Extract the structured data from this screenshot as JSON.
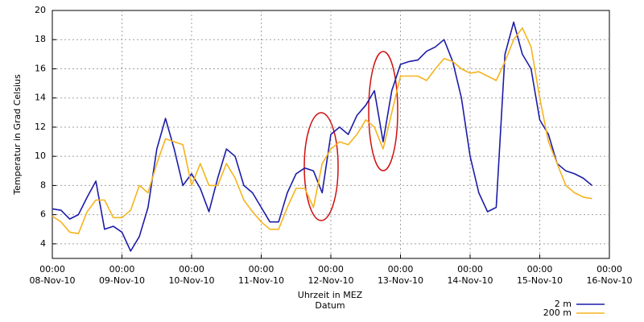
{
  "chart_data": {
    "type": "line",
    "ylabel": "Temperatur in Grad Celsius",
    "xlabel": "Uhrzeit in MEZ",
    "xlabel2": "Datum",
    "ylim": [
      3,
      20
    ],
    "yticks": [
      4,
      6,
      8,
      10,
      12,
      14,
      16,
      18,
      20
    ],
    "xlim": [
      "08-Nov-10 00:00",
      "16-Nov-10 00:00"
    ],
    "xticks": [
      {
        "value": "08-Nov-10 00:00",
        "label": "00:00",
        "date": "08-Nov-10"
      },
      {
        "value": "09-Nov-10 00:00",
        "label": "00:00",
        "date": "09-Nov-10"
      },
      {
        "value": "10-Nov-10 00:00",
        "label": "00:00",
        "date": "10-Nov-10"
      },
      {
        "value": "11-Nov-10 00:00",
        "label": "00:00",
        "date": "11-Nov-10"
      },
      {
        "value": "12-Nov-10 00:00",
        "label": "00:00",
        "date": "12-Nov-10"
      },
      {
        "value": "13-Nov-10 00:00",
        "label": "00:00",
        "date": "13-Nov-10"
      },
      {
        "value": "14-Nov-10 00:00",
        "label": "00:00",
        "date": "14-Nov-10"
      },
      {
        "value": "15-Nov-10 00:00",
        "label": "00:00",
        "date": "15-Nov-10"
      },
      {
        "value": "16-Nov-10 00:00",
        "label": "00:00",
        "date": "16-Nov-10"
      }
    ],
    "grid": true,
    "legend": "bottom-right",
    "x": [
      "08-Nov-10 00:00",
      "08-Nov-10 03:00",
      "08-Nov-10 06:00",
      "08-Nov-10 09:00",
      "08-Nov-10 12:00",
      "08-Nov-10 15:00",
      "08-Nov-10 18:00",
      "08-Nov-10 21:00",
      "09-Nov-10 00:00",
      "09-Nov-10 03:00",
      "09-Nov-10 06:00",
      "09-Nov-10 09:00",
      "09-Nov-10 12:00",
      "09-Nov-10 15:00",
      "09-Nov-10 18:00",
      "09-Nov-10 21:00",
      "10-Nov-10 00:00",
      "10-Nov-10 03:00",
      "10-Nov-10 06:00",
      "10-Nov-10 09:00",
      "10-Nov-10 12:00",
      "10-Nov-10 15:00",
      "10-Nov-10 18:00",
      "10-Nov-10 21:00",
      "11-Nov-10 00:00",
      "11-Nov-10 03:00",
      "11-Nov-10 06:00",
      "11-Nov-10 09:00",
      "11-Nov-10 12:00",
      "11-Nov-10 15:00",
      "11-Nov-10 18:00",
      "11-Nov-10 21:00",
      "12-Nov-10 00:00",
      "12-Nov-10 03:00",
      "12-Nov-10 06:00",
      "12-Nov-10 09:00",
      "12-Nov-10 12:00",
      "12-Nov-10 15:00",
      "12-Nov-10 18:00",
      "12-Nov-10 21:00",
      "13-Nov-10 00:00",
      "13-Nov-10 03:00",
      "13-Nov-10 06:00",
      "13-Nov-10 09:00",
      "13-Nov-10 12:00",
      "13-Nov-10 15:00",
      "13-Nov-10 18:00",
      "13-Nov-10 21:00",
      "14-Nov-10 00:00",
      "14-Nov-10 03:00",
      "14-Nov-10 06:00",
      "14-Nov-10 09:00",
      "14-Nov-10 12:00",
      "14-Nov-10 15:00",
      "14-Nov-10 18:00",
      "14-Nov-10 21:00",
      "15-Nov-10 00:00",
      "15-Nov-10 03:00",
      "15-Nov-10 06:00",
      "15-Nov-10 09:00",
      "15-Nov-10 12:00",
      "15-Nov-10 15:00",
      "15-Nov-10 18:00"
    ],
    "series": [
      {
        "name": "2 m",
        "color": "#1c1ca8",
        "values": [
          6.4,
          6.3,
          5.7,
          6.0,
          7.2,
          8.3,
          5.0,
          5.2,
          4.8,
          3.5,
          4.5,
          6.5,
          10.5,
          12.6,
          10.5,
          8.0,
          8.8,
          7.8,
          6.2,
          8.5,
          10.5,
          10.0,
          8.0,
          7.5,
          6.5,
          5.5,
          5.5,
          7.5,
          8.8,
          9.2,
          9.0,
          7.5,
          11.5,
          12.0,
          11.5,
          12.8,
          13.5,
          14.5,
          11.0,
          14.5,
          16.3,
          16.5,
          16.6,
          17.2,
          17.5,
          18.0,
          16.5,
          14.0,
          10.0,
          7.5,
          6.2,
          6.5,
          17.0,
          19.2,
          17.0,
          16.0,
          12.5,
          11.5,
          9.5,
          9.0,
          8.8,
          8.5,
          8.0
        ]
      },
      {
        "name": "200 m",
        "color": "#f5b41e",
        "values": [
          5.9,
          5.5,
          4.8,
          4.7,
          6.2,
          7.0,
          7.0,
          5.8,
          5.8,
          6.3,
          8.0,
          7.5,
          9.5,
          11.2,
          11.0,
          10.8,
          8.0,
          9.5,
          8.0,
          8.0,
          9.5,
          8.5,
          7.0,
          6.2,
          5.5,
          5.0,
          5.0,
          6.5,
          7.8,
          7.8,
          6.5,
          9.5,
          10.5,
          11.0,
          10.8,
          11.5,
          12.5,
          12.0,
          10.5,
          13.0,
          15.5,
          15.5,
          15.5,
          15.2,
          16.0,
          16.7,
          16.5,
          16.0,
          15.7,
          15.8,
          15.5,
          15.2,
          16.5,
          18.0,
          18.8,
          17.5,
          14.0,
          11.0,
          9.5,
          8.0,
          7.5,
          7.2,
          7.1
        ]
      }
    ]
  }
}
